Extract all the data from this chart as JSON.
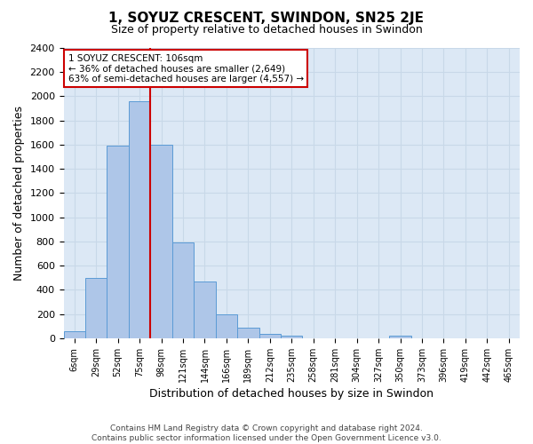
{
  "title": "1, SOYUZ CRESCENT, SWINDON, SN25 2JE",
  "subtitle": "Size of property relative to detached houses in Swindon",
  "xlabel": "Distribution of detached houses by size in Swindon",
  "ylabel": "Number of detached properties",
  "footer_line1": "Contains HM Land Registry data © Crown copyright and database right 2024.",
  "footer_line2": "Contains public sector information licensed under the Open Government Licence v3.0.",
  "categories": [
    "6sqm",
    "29sqm",
    "52sqm",
    "75sqm",
    "98sqm",
    "121sqm",
    "144sqm",
    "166sqm",
    "189sqm",
    "212sqm",
    "235sqm",
    "258sqm",
    "281sqm",
    "304sqm",
    "327sqm",
    "350sqm",
    "373sqm",
    "396sqm",
    "419sqm",
    "442sqm",
    "465sqm"
  ],
  "bar_values": [
    60,
    500,
    1590,
    1960,
    1600,
    790,
    470,
    200,
    90,
    35,
    25,
    0,
    0,
    0,
    0,
    20,
    0,
    0,
    0,
    0,
    0
  ],
  "bar_color": "#aec6e8",
  "bar_edge_color": "#5b9bd5",
  "grid_color": "#c8d8e8",
  "background_color": "#dce8f5",
  "vline_color": "#cc0000",
  "vline_position": 3.5,
  "annotation_text": "1 SOYUZ CRESCENT: 106sqm\n← 36% of detached houses are smaller (2,649)\n63% of semi-detached houses are larger (4,557) →",
  "annotation_box_color": "#cc0000",
  "ylim": [
    0,
    2400
  ],
  "yticks": [
    0,
    200,
    400,
    600,
    800,
    1000,
    1200,
    1400,
    1600,
    1800,
    2000,
    2200,
    2400
  ],
  "title_fontsize": 11,
  "subtitle_fontsize": 9,
  "ylabel_fontsize": 9,
  "xlabel_fontsize": 9,
  "tick_fontsize": 8,
  "xtick_fontsize": 7,
  "footer_fontsize": 6.5
}
